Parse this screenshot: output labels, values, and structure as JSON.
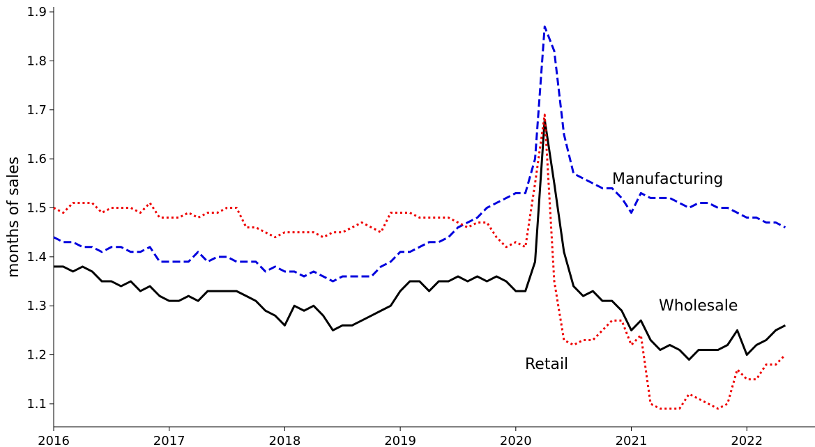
{
  "chart_data": {
    "type": "line",
    "ylabel": "months of sales",
    "x": [
      2016,
      2016.083,
      2016.167,
      2016.25,
      2016.333,
      2016.417,
      2016.5,
      2016.583,
      2016.667,
      2016.75,
      2016.833,
      2016.917,
      2017,
      2017.083,
      2017.167,
      2017.25,
      2017.333,
      2017.417,
      2017.5,
      2017.583,
      2017.667,
      2017.75,
      2017.833,
      2017.917,
      2018,
      2018.083,
      2018.167,
      2018.25,
      2018.333,
      2018.417,
      2018.5,
      2018.583,
      2018.667,
      2018.75,
      2018.833,
      2018.917,
      2019,
      2019.083,
      2019.167,
      2019.25,
      2019.333,
      2019.417,
      2019.5,
      2019.583,
      2019.667,
      2019.75,
      2019.833,
      2019.917,
      2020,
      2020.083,
      2020.167,
      2020.25,
      2020.333,
      2020.417,
      2020.5,
      2020.583,
      2020.667,
      2020.75,
      2020.833,
      2020.917,
      2021,
      2021.083,
      2021.167,
      2021.25,
      2021.333,
      2021.417,
      2021.5,
      2021.583,
      2021.667,
      2021.75,
      2021.833,
      2021.917,
      2022,
      2022.083,
      2022.167,
      2022.25,
      2022.333
    ],
    "series": [
      {
        "name": "Wholesale",
        "color": "#000000",
        "linestyle": "solid",
        "values": [
          1.38,
          1.38,
          1.37,
          1.38,
          1.37,
          1.35,
          1.35,
          1.34,
          1.35,
          1.33,
          1.34,
          1.32,
          1.31,
          1.31,
          1.32,
          1.31,
          1.33,
          1.33,
          1.33,
          1.33,
          1.32,
          1.31,
          1.29,
          1.28,
          1.26,
          1.3,
          1.29,
          1.3,
          1.28,
          1.25,
          1.26,
          1.26,
          1.27,
          1.28,
          1.29,
          1.3,
          1.33,
          1.35,
          1.35,
          1.33,
          1.35,
          1.35,
          1.36,
          1.35,
          1.36,
          1.35,
          1.36,
          1.35,
          1.33,
          1.33,
          1.39,
          1.68,
          1.55,
          1.41,
          1.34,
          1.32,
          1.33,
          1.31,
          1.31,
          1.29,
          1.25,
          1.27,
          1.23,
          1.21,
          1.22,
          1.21,
          1.19,
          1.21,
          1.21,
          1.21,
          1.22,
          1.25,
          1.2,
          1.22,
          1.23,
          1.25,
          1.26
        ]
      },
      {
        "name": "Manufacturing",
        "color": "#0000dd",
        "linestyle": "dashed",
        "values": [
          1.44,
          1.43,
          1.43,
          1.42,
          1.42,
          1.41,
          1.42,
          1.42,
          1.41,
          1.41,
          1.42,
          1.39,
          1.39,
          1.39,
          1.39,
          1.41,
          1.39,
          1.4,
          1.4,
          1.39,
          1.39,
          1.39,
          1.37,
          1.38,
          1.37,
          1.37,
          1.36,
          1.37,
          1.36,
          1.35,
          1.36,
          1.36,
          1.36,
          1.36,
          1.38,
          1.39,
          1.41,
          1.41,
          1.42,
          1.43,
          1.43,
          1.44,
          1.46,
          1.47,
          1.48,
          1.5,
          1.51,
          1.52,
          1.53,
          1.53,
          1.6,
          1.87,
          1.82,
          1.65,
          1.57,
          1.56,
          1.55,
          1.54,
          1.54,
          1.52,
          1.49,
          1.53,
          1.52,
          1.52,
          1.52,
          1.51,
          1.5,
          1.51,
          1.51,
          1.5,
          1.5,
          1.49,
          1.48,
          1.48,
          1.47,
          1.47,
          1.46
        ]
      },
      {
        "name": "Retail",
        "color": "#ee0000",
        "linestyle": "dotted",
        "values": [
          1.5,
          1.49,
          1.51,
          1.51,
          1.51,
          1.49,
          1.5,
          1.5,
          1.5,
          1.49,
          1.51,
          1.48,
          1.48,
          1.48,
          1.49,
          1.48,
          1.49,
          1.49,
          1.5,
          1.5,
          1.46,
          1.46,
          1.45,
          1.44,
          1.45,
          1.45,
          1.45,
          1.45,
          1.44,
          1.45,
          1.45,
          1.46,
          1.47,
          1.46,
          1.45,
          1.49,
          1.49,
          1.49,
          1.48,
          1.48,
          1.48,
          1.48,
          1.47,
          1.46,
          1.47,
          1.47,
          1.44,
          1.42,
          1.43,
          1.42,
          1.55,
          1.69,
          1.35,
          1.23,
          1.22,
          1.23,
          1.23,
          1.25,
          1.27,
          1.27,
          1.22,
          1.24,
          1.1,
          1.09,
          1.09,
          1.09,
          1.12,
          1.11,
          1.1,
          1.09,
          1.1,
          1.17,
          1.15,
          1.15,
          1.18,
          1.18,
          1.2
        ]
      }
    ],
    "annotations": [
      "Manufacturing",
      "Wholesale",
      "Retail"
    ],
    "xlim": [
      2016,
      2022.59
    ],
    "xticks": [
      2016,
      2017,
      2018,
      2019,
      2020,
      2021,
      2022
    ],
    "ylim": [
      1.053,
      1.91
    ],
    "yticks": [
      1.1,
      1.2,
      1.3,
      1.4,
      1.5,
      1.6,
      1.7,
      1.8,
      1.9
    ],
    "grid": false
  }
}
